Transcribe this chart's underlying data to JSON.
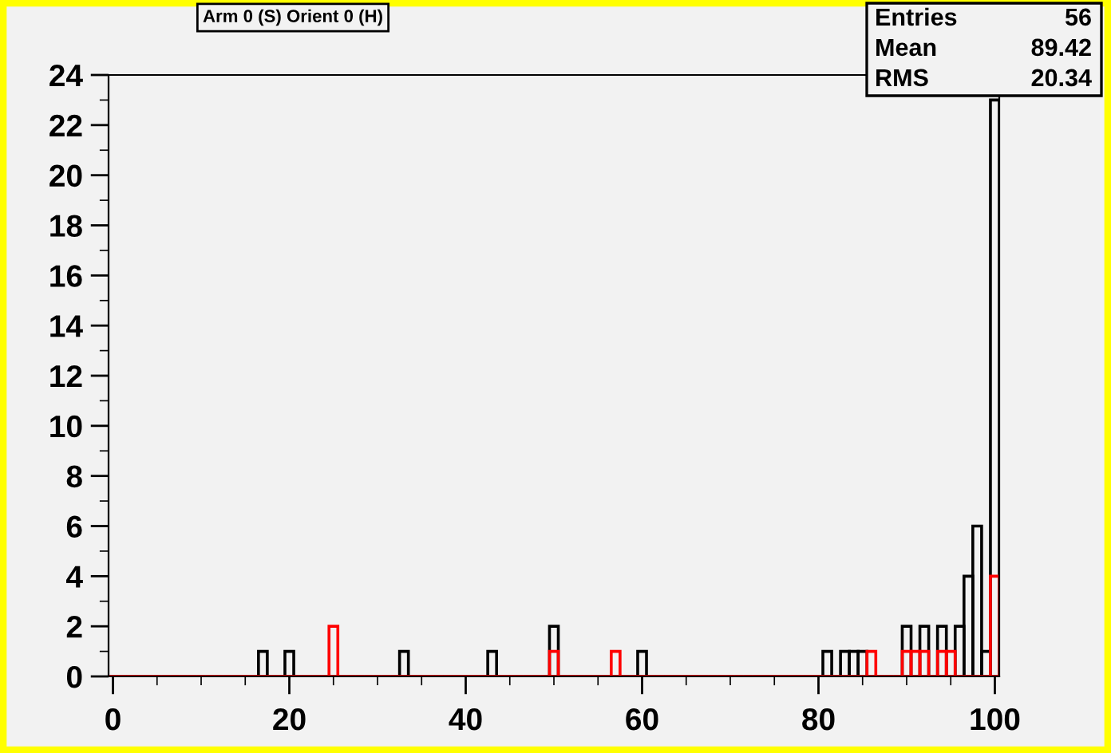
{
  "chart_data": {
    "type": "histogram",
    "title": "Arm 0 (S) Orient 0 (H)",
    "annotations": [
      "Entries",
      "56",
      "Mean",
      "89.42",
      "RMS",
      "20.34"
    ],
    "bins": [
      -0.5,
      0.5,
      1.5,
      2.5,
      3.5,
      4.5,
      5.5,
      6.5,
      7.5,
      8.5,
      9.5,
      10.5,
      11.5,
      12.5,
      13.5,
      14.5,
      15.5,
      16.5,
      17.5,
      18.5,
      19.5,
      20.5,
      21.5,
      22.5,
      23.5,
      24.5,
      25.5,
      26.5,
      27.5,
      28.5,
      29.5,
      30.5,
      31.5,
      32.5,
      33.5,
      34.5,
      35.5,
      36.5,
      37.5,
      38.5,
      39.5,
      40.5,
      41.5,
      42.5,
      43.5,
      44.5,
      45.5,
      46.5,
      47.5,
      48.5,
      49.5,
      50.5,
      51.5,
      52.5,
      53.5,
      54.5,
      55.5,
      56.5,
      57.5,
      58.5,
      59.5,
      60.5,
      61.5,
      62.5,
      63.5,
      64.5,
      65.5,
      66.5,
      67.5,
      68.5,
      69.5,
      70.5,
      71.5,
      72.5,
      73.5,
      74.5,
      75.5,
      76.5,
      77.5,
      78.5,
      79.5,
      80.5,
      81.5,
      82.5,
      83.5,
      84.5,
      85.5,
      86.5,
      87.5,
      88.5,
      89.5,
      90.5,
      91.5,
      92.5,
      93.5,
      94.5,
      95.5,
      96.5,
      97.5,
      98.5,
      99.5,
      100.5
    ],
    "series": [
      {
        "color": "#000000",
        "values": [
          0,
          0,
          0,
          0,
          0,
          0,
          0,
          0,
          0,
          0,
          0,
          0,
          0,
          0,
          0,
          0,
          0,
          1,
          0,
          0,
          1,
          0,
          0,
          0,
          0,
          0,
          0,
          0,
          0,
          0,
          0,
          0,
          0,
          1,
          0,
          0,
          0,
          0,
          0,
          0,
          0,
          0,
          0,
          1,
          0,
          0,
          0,
          0,
          0,
          0,
          2,
          0,
          0,
          0,
          0,
          0,
          0,
          0,
          0,
          0,
          1,
          0,
          0,
          0,
          0,
          0,
          0,
          0,
          0,
          0,
          0,
          0,
          0,
          0,
          0,
          0,
          0,
          0,
          0,
          0,
          0,
          1,
          0,
          1,
          1,
          1,
          0,
          0,
          0,
          0,
          2,
          0,
          2,
          0,
          2,
          0,
          2,
          4,
          6,
          1,
          23
        ]
      },
      {
        "color": "#ff0000",
        "values": [
          0,
          0,
          0,
          0,
          0,
          0,
          0,
          0,
          0,
          0,
          0,
          0,
          0,
          0,
          0,
          0,
          0,
          0,
          0,
          0,
          0,
          0,
          0,
          0,
          0,
          2,
          0,
          0,
          0,
          0,
          0,
          0,
          0,
          0,
          0,
          0,
          0,
          0,
          0,
          0,
          0,
          0,
          0,
          0,
          0,
          0,
          0,
          0,
          0,
          0,
          1,
          0,
          0,
          0,
          0,
          0,
          0,
          1,
          0,
          0,
          0,
          0,
          0,
          0,
          0,
          0,
          0,
          0,
          0,
          0,
          0,
          0,
          0,
          0,
          0,
          0,
          0,
          0,
          0,
          0,
          0,
          0,
          0,
          0,
          0,
          0,
          1,
          0,
          0,
          0,
          1,
          1,
          1,
          0,
          1,
          1,
          0,
          0,
          0,
          0,
          4
        ]
      }
    ],
    "xlim": [
      -0.5,
      100.5
    ],
    "xticks": [
      0,
      20,
      40,
      60,
      80,
      100
    ],
    "ylim": [
      0,
      24
    ],
    "yticks": [
      0,
      2,
      4,
      6,
      8,
      10,
      12,
      14,
      16,
      18,
      20,
      22,
      24
    ],
    "grid": false,
    "legend": false
  }
}
